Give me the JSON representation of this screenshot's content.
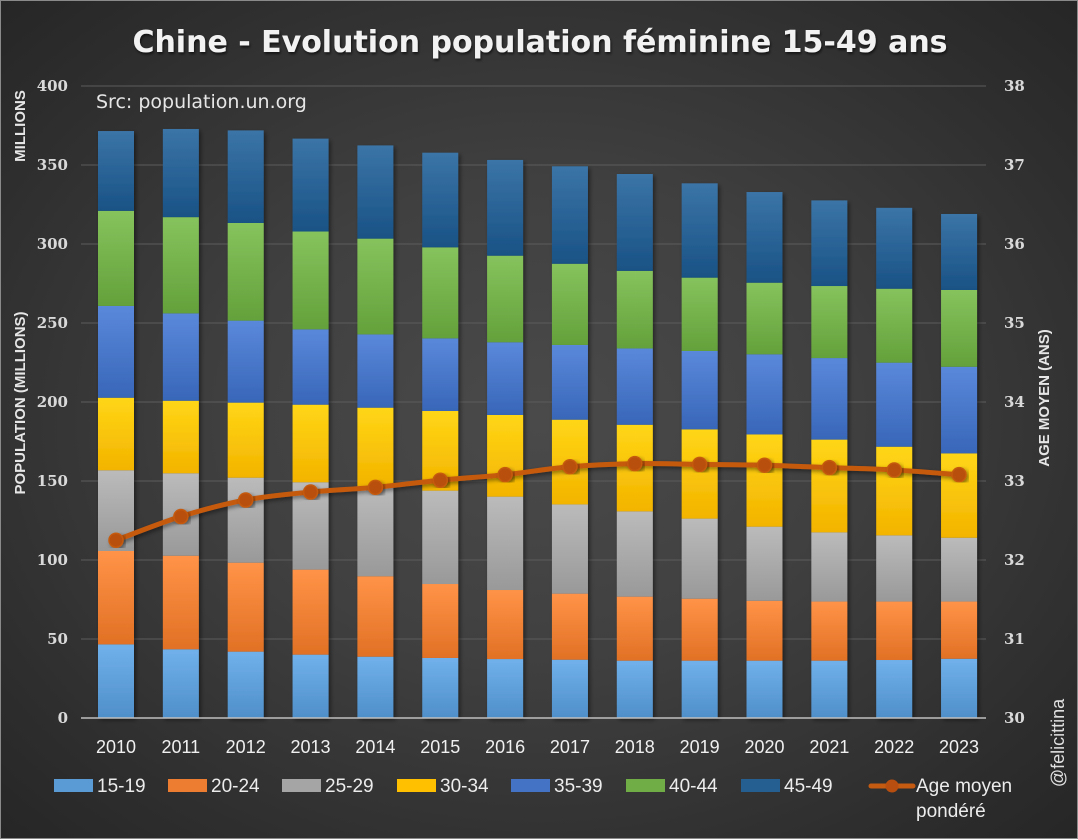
{
  "chart_data": {
    "type": "bar",
    "stacked": true,
    "title": "Chine - Evolution population féminine 15-49 ans",
    "source_note": "Src: population.un.org",
    "watermark": "@felicittina",
    "xlabel": "",
    "ylabel": "POPULATION (MILLIONS)",
    "ylabel_unit_note": "MILLIONS",
    "y2label": "AGE MOYEN (ANS)",
    "ylim": [
      0,
      400
    ],
    "y2lim": [
      30,
      38
    ],
    "yticks": [
      0,
      50,
      100,
      150,
      200,
      250,
      300,
      350,
      400
    ],
    "y2ticks": [
      30,
      31,
      32,
      33,
      34,
      35,
      36,
      37,
      38
    ],
    "grid": true,
    "legend_position": "bottom",
    "categories": [
      "2010",
      "2011",
      "2012",
      "2013",
      "2014",
      "2015",
      "2016",
      "2017",
      "2018",
      "2019",
      "2020",
      "2021",
      "2022",
      "2023"
    ],
    "series": [
      {
        "name": "15-19",
        "color": "#5b9bd5",
        "values": [
          46.6,
          43.5,
          42.0,
          40.1,
          38.8,
          38.0,
          37.3,
          36.9,
          36.3,
          36.3,
          36.3,
          36.3,
          36.7,
          37.5
        ]
      },
      {
        "name": "20-24",
        "color": "#ed7d31",
        "values": [
          59.1,
          59.2,
          56.3,
          53.8,
          50.9,
          46.8,
          43.7,
          41.8,
          40.5,
          39.2,
          37.9,
          37.4,
          37.0,
          36.2
        ]
      },
      {
        "name": "25-29",
        "color": "#a5a5a5",
        "values": [
          51.1,
          52.2,
          53.8,
          55.3,
          57.1,
          59.1,
          59.1,
          56.5,
          54.0,
          50.7,
          46.9,
          43.8,
          41.9,
          40.4
        ]
      },
      {
        "name": "30-34",
        "color": "#ffc000",
        "values": [
          45.9,
          45.9,
          47.5,
          49.1,
          49.6,
          50.4,
          51.7,
          53.6,
          54.8,
          56.5,
          58.4,
          58.7,
          56.1,
          53.4
        ]
      },
      {
        "name": "35-39",
        "color": "#4472c4",
        "values": [
          58.1,
          55.3,
          51.9,
          47.7,
          46.4,
          46.0,
          46.0,
          47.3,
          48.3,
          49.6,
          50.7,
          51.6,
          53.2,
          54.8
        ]
      },
      {
        "name": "40-44",
        "color": "#70ad47",
        "values": [
          60.2,
          60.9,
          61.8,
          61.9,
          60.6,
          57.6,
          54.8,
          51.4,
          49.1,
          46.4,
          45.3,
          45.6,
          46.8,
          48.6
        ]
      },
      {
        "name": "45-49",
        "color": "#255e91",
        "values": [
          50.5,
          55.8,
          58.6,
          58.8,
          59.0,
          59.9,
          60.6,
          61.7,
          61.3,
          59.7,
          57.4,
          54.2,
          51.2,
          48.1
        ]
      }
    ],
    "line_series": {
      "name": "Age moyen pondéré",
      "axis": "right",
      "color": "#c55a11",
      "values": [
        32.25,
        32.55,
        32.76,
        32.86,
        32.92,
        33.01,
        33.08,
        33.18,
        33.22,
        33.21,
        33.2,
        33.17,
        33.14,
        33.08
      ]
    },
    "legend": [
      {
        "label": "15-19",
        "kind": "bar"
      },
      {
        "label": "20-24",
        "kind": "bar"
      },
      {
        "label": "25-29",
        "kind": "bar"
      },
      {
        "label": "30-34",
        "kind": "bar"
      },
      {
        "label": "35-39",
        "kind": "bar"
      },
      {
        "label": "40-44",
        "kind": "bar"
      },
      {
        "label": "45-49",
        "kind": "bar"
      },
      {
        "label_line1": "Age moyen",
        "label_line2": "pondéré",
        "kind": "line"
      }
    ]
  }
}
